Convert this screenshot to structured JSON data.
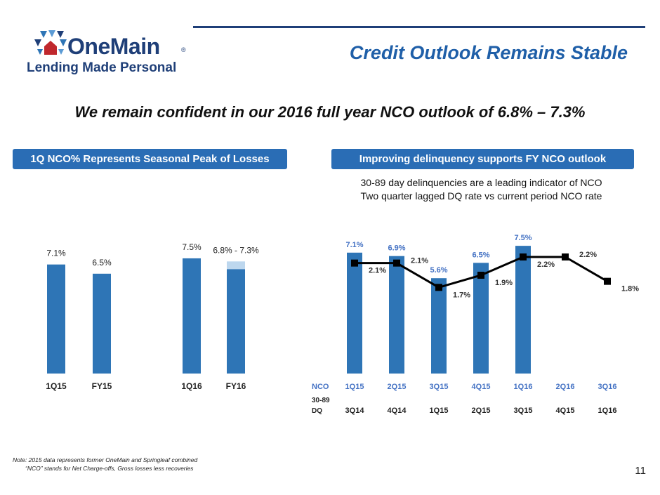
{
  "brand": {
    "name": "OneMain",
    "reg": "®",
    "tagline": "Lending Made Personal"
  },
  "page": {
    "title": "Credit Outlook Remains Stable",
    "headline": "We remain confident in our 2016 full year NCO outlook of 6.8% – 7.3%",
    "page_number": "11"
  },
  "colors": {
    "bar": "#2e75b6",
    "bar_light": "#bdd7ee",
    "line": "#000000",
    "pill": "#2a6db5",
    "accent_text": "#4472c4",
    "title": "#1f5fa8"
  },
  "left_panel": {
    "header": "1Q NCO% Represents Seasonal Peak of Losses"
  },
  "right_panel": {
    "header": "Improving delinquency supports FY NCO outlook",
    "note_line1": "30-89 day delinquencies are a leading indicator of NCO",
    "note_line2": "Two quarter lagged DQ rate vs current period NCO rate",
    "nco_row_label": "NCO",
    "dq_row_label_1": "30-89",
    "dq_row_label_2": "DQ"
  },
  "chart_data": [
    {
      "type": "bar",
      "categories": [
        "1Q15",
        "FY15",
        "1Q16",
        "FY16"
      ],
      "values": [
        7.1,
        6.5,
        7.5,
        6.8
      ],
      "labels": [
        "7.1%",
        "6.5%",
        "7.5%",
        "6.8% - 7.3%"
      ],
      "range_top": {
        "category": "FY16",
        "low": 6.8,
        "high": 7.3
      },
      "ylim": [
        0,
        8
      ]
    },
    {
      "type": "bar+line",
      "categories": [
        "1Q15",
        "2Q15",
        "3Q15",
        "4Q15",
        "1Q16",
        "2Q16",
        "3Q16"
      ],
      "dq_categories": [
        "3Q14",
        "4Q14",
        "1Q15",
        "2Q15",
        "3Q15",
        "4Q15",
        "1Q16"
      ],
      "series": [
        {
          "values": [
            7.1,
            6.9,
            5.6,
            6.5,
            7.5,
            null,
            null
          ],
          "labels": [
            "7.1%",
            "6.9%",
            "5.6%",
            "6.5%",
            "7.5%",
            "",
            ""
          ]
        },
        {
          "values": [
            2.1,
            2.1,
            1.7,
            1.9,
            2.2,
            2.2,
            1.8
          ],
          "labels": [
            "2.1%",
            "2.1%",
            "1.7%",
            "1.9%",
            "2.2%",
            "2.2%",
            "1.8%"
          ]
        }
      ],
      "ylim_bar": [
        0,
        8
      ],
      "ylim_line": [
        0,
        2.5
      ]
    }
  ],
  "footnotes": {
    "line1": "Note: 2015 data represents former OneMain and Springleaf combined",
    "line2": "“NCO” stands for Net Charge-offs, Gross losses less recoveries"
  }
}
